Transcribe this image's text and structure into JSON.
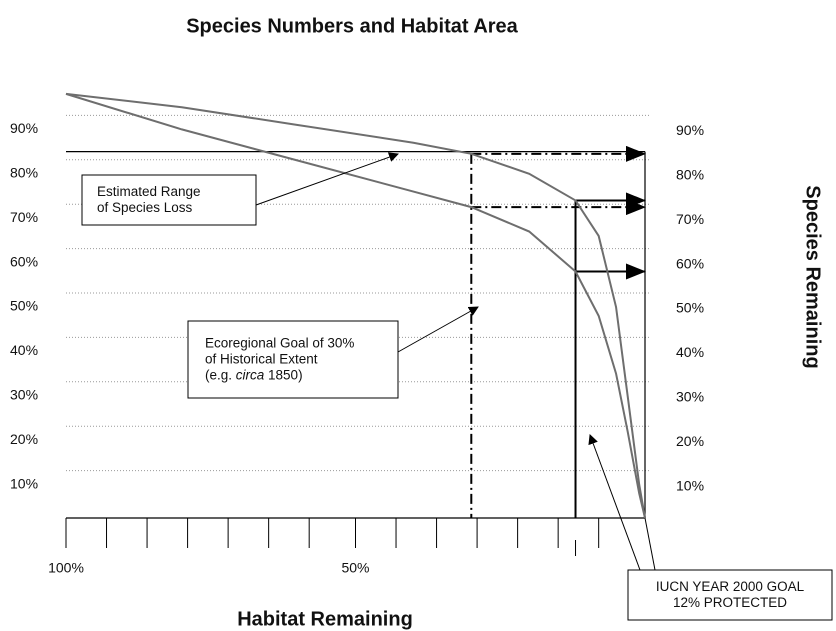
{
  "chart_data": {
    "type": "line",
    "title": "Species Numbers and Habitat Area",
    "xlabel": "Habitat Remaining",
    "ylabel": "Species Remaining",
    "xlim": [
      100,
      0
    ],
    "ylim": [
      0,
      100
    ],
    "xticks": [
      {
        "value": 100,
        "label": "100%"
      },
      {
        "value": 50,
        "label": "50%"
      }
    ],
    "xminor_ticks": [
      93,
      86,
      79,
      72,
      65,
      58,
      43,
      36,
      29,
      22,
      15,
      8
    ],
    "yticks": [
      {
        "value": 10,
        "label": "10%"
      },
      {
        "value": 20,
        "label": "20%"
      },
      {
        "value": 30,
        "label": "30%"
      },
      {
        "value": 40,
        "label": "40%"
      },
      {
        "value": 50,
        "label": "50%"
      },
      {
        "value": 60,
        "label": "60%"
      },
      {
        "value": 70,
        "label": "70%"
      },
      {
        "value": 80,
        "label": "80%"
      },
      {
        "value": 90,
        "label": "90%"
      }
    ],
    "grid": true,
    "series": [
      {
        "color": "#6e6e6e",
        "x": [
          100,
          80,
          60,
          40,
          30,
          20,
          12,
          8,
          5,
          3,
          1,
          0
        ],
        "values": [
          98,
          95,
          91,
          87,
          84.5,
          80,
          74,
          66,
          50,
          30,
          10,
          2.5
        ]
      },
      {
        "color": "#6e6e6e",
        "x": [
          100,
          80,
          60,
          40,
          30,
          20,
          12,
          8,
          5,
          3,
          1,
          0
        ],
        "values": [
          98,
          90,
          83,
          76,
          72.5,
          67,
          58,
          48,
          35,
          22,
          8,
          2.5
        ]
      }
    ],
    "hline": 85,
    "goal_lines": [
      {
        "x": 30,
        "style": "dashdot"
      },
      {
        "x": 12,
        "style": "solid"
      }
    ],
    "annotations": [
      {
        "lines": [
          [
            "Estimated Range"
          ],
          [
            "of Species Loss"
          ]
        ]
      },
      {
        "lines": [
          [
            "Ecoregional Goal of 30%"
          ],
          [
            "of Historical Extent"
          ],
          [
            "(e.g. ",
            "circa",
            " 1850)"
          ]
        ]
      },
      {
        "lines": [
          [
            "IUCN YEAR 2000 GOAL"
          ],
          [
            "12% PROTECTED"
          ]
        ]
      }
    ]
  }
}
